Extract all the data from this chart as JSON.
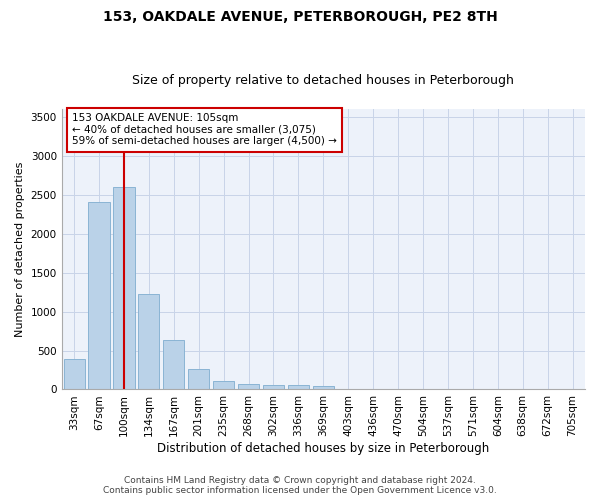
{
  "title": "153, OAKDALE AVENUE, PETERBOROUGH, PE2 8TH",
  "subtitle": "Size of property relative to detached houses in Peterborough",
  "xlabel": "Distribution of detached houses by size in Peterborough",
  "ylabel": "Number of detached properties",
  "categories": [
    "33sqm",
    "67sqm",
    "100sqm",
    "134sqm",
    "167sqm",
    "201sqm",
    "235sqm",
    "268sqm",
    "302sqm",
    "336sqm",
    "369sqm",
    "403sqm",
    "436sqm",
    "470sqm",
    "504sqm",
    "537sqm",
    "571sqm",
    "604sqm",
    "638sqm",
    "672sqm",
    "705sqm"
  ],
  "values": [
    390,
    2400,
    2600,
    1220,
    640,
    260,
    110,
    65,
    60,
    55,
    40,
    0,
    0,
    0,
    0,
    0,
    0,
    0,
    0,
    0,
    0
  ],
  "bar_color": "#bad2e8",
  "bar_edge_color": "#8ab4d4",
  "red_line_index": 2,
  "red_line_color": "#cc0000",
  "annotation_text": "153 OAKDALE AVENUE: 105sqm\n← 40% of detached houses are smaller (3,075)\n59% of semi-detached houses are larger (4,500) →",
  "annotation_box_color": "#ffffff",
  "annotation_box_edge_color": "#cc0000",
  "ylim": [
    0,
    3600
  ],
  "yticks": [
    0,
    500,
    1000,
    1500,
    2000,
    2500,
    3000,
    3500
  ],
  "title_fontsize": 10,
  "subtitle_fontsize": 9,
  "xlabel_fontsize": 8.5,
  "ylabel_fontsize": 8,
  "tick_fontsize": 7.5,
  "annotation_fontsize": 7.5,
  "footer_line1": "Contains HM Land Registry data © Crown copyright and database right 2024.",
  "footer_line2": "Contains public sector information licensed under the Open Government Licence v3.0.",
  "grid_color": "#c8d4e8",
  "background_color": "#edf2fa"
}
